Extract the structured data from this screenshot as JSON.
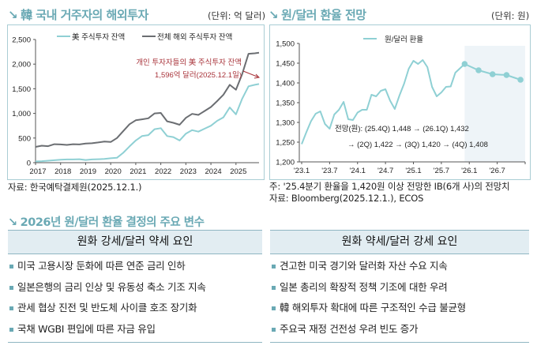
{
  "left_section": {
    "arrow_icon": "↘",
    "title": "韓 국내 거주자의 해외투자",
    "unit": "(단위: 억 달러)",
    "source": "자료: 한국예탁결제원(2025.12.1.)"
  },
  "right_section": {
    "arrow_icon": "↘",
    "title": "원/달러 환율 전망",
    "unit": "(단위: 원)",
    "note": "주: '25.4분기 환율을 1,420원 이상 전망한 IB(6개 사)의 전망치",
    "source": "자료: Bloomberg(2025.12.1.), ECOS"
  },
  "table_section": {
    "arrow_icon": "↘",
    "title": "2026년 원/달러 환율 결정의 주요 변수",
    "columns": [
      {
        "header": "원화 강세/달러 약세 요인",
        "items": [
          "미국 고용시장 둔화에 따른 연준 금리 인하",
          "일본은행의 금리 인상 및 유동성 축소 기조 지속",
          "관세 협상 진전 및 반도체 사이클 호조 장기화",
          "국채 WGBI 편입에 따른 자금 유입"
        ]
      },
      {
        "header": "원화 약세/달러 강세 요인",
        "items": [
          "견고한 미국 경기와 달러화 자산 수요 지속",
          "일본 총리의 확장적 정책 기조에 대한 우려",
          "韓 해외투자 확대에 따른 구조적인 수급 불균형",
          "주요국 재정 건전성 우려 빈도 증가"
        ]
      }
    ]
  },
  "colors": {
    "accent": "#6aa9b4",
    "us_line": "#8fd0d4",
    "total_line": "#6b6e72",
    "annotation": "#a8333a",
    "forecast_shade": "#eef4f8"
  },
  "chart_data": [
    {
      "type": "line",
      "title": "韓 국내 거주자의 해외투자",
      "unit": "억 달러",
      "xlabel": "",
      "ylabel": "",
      "xlim": [
        2017.0,
        2025.92
      ],
      "ylim": [
        0,
        2500
      ],
      "yticks": [
        0,
        500,
        1000,
        1500,
        2000,
        2500
      ],
      "ytick_labels": [
        "0",
        "500",
        "1,000",
        "1,500",
        "2,000",
        "2,500"
      ],
      "xticks": [
        2017,
        2018,
        2019,
        2020,
        2021,
        2022,
        2023,
        2024,
        2025
      ],
      "xtick_labels": [
        "2017",
        "2018",
        "2019",
        "2020",
        "2021",
        "2022",
        "2023",
        "2024",
        "2025"
      ],
      "grid": false,
      "legend": "top",
      "annotation": {
        "line1": "개인 투자자들의 美 주식투자 잔액",
        "line2": "1,596억 달러(2025.12.1일)"
      },
      "x": [
        2017.0,
        2017.25,
        2017.5,
        2017.75,
        2018.0,
        2018.25,
        2018.5,
        2018.75,
        2019.0,
        2019.25,
        2019.5,
        2019.75,
        2020.0,
        2020.25,
        2020.5,
        2020.75,
        2021.0,
        2021.25,
        2021.5,
        2021.75,
        2022.0,
        2022.25,
        2022.5,
        2022.75,
        2023.0,
        2023.25,
        2023.5,
        2023.75,
        2024.0,
        2024.25,
        2024.5,
        2024.75,
        2025.0,
        2025.25,
        2025.5,
        2025.75,
        2025.92
      ],
      "series": [
        {
          "name": "美 주식투자 잔액",
          "values": [
            25,
            30,
            40,
            50,
            60,
            65,
            65,
            70,
            55,
            65,
            70,
            75,
            90,
            100,
            200,
            330,
            450,
            540,
            560,
            680,
            700,
            540,
            520,
            450,
            590,
            660,
            630,
            690,
            750,
            850,
            920,
            1120,
            980,
            1300,
            1550,
            1580,
            1596
          ]
        },
        {
          "name": "전체 해외 주식투자 잔액",
          "values": [
            320,
            345,
            335,
            375,
            370,
            360,
            375,
            370,
            390,
            395,
            410,
            430,
            420,
            500,
            640,
            780,
            860,
            880,
            900,
            1000,
            1010,
            840,
            810,
            770,
            910,
            990,
            970,
            1050,
            1130,
            1250,
            1380,
            1580,
            1480,
            1800,
            2210,
            2220,
            2230
          ]
        }
      ]
    },
    {
      "type": "line",
      "title": "원/달러 환율 전망",
      "unit": "원",
      "xlabel": "",
      "ylabel": "",
      "ylim": [
        1200,
        1500
      ],
      "yticks": [
        1200,
        1250,
        1300,
        1350,
        1400,
        1450,
        1500
      ],
      "ytick_labels": [
        "1,200",
        "1,250",
        "1,300",
        "1,350",
        "1,400",
        "1,450",
        "1,500"
      ],
      "xtick_labels": [
        "'23.1",
        "'23.7",
        "'24.1",
        "'24.7",
        "'25.1",
        "'25.7",
        "'26.1",
        "'26.7"
      ],
      "grid": false,
      "legend": "top",
      "forecast_shaded": true,
      "annotation": {
        "line1": "전망(원): (25.4Q) 1,448 → (26.1Q) 1,432",
        "line2": "→ (2Q) 1,422 → (3Q) 1,420 → (4Q) 1,408"
      },
      "series": [
        {
          "name": "원/달러 환율",
          "x_months": [
            0,
            1,
            2,
            3,
            4,
            5,
            6,
            7,
            8,
            9,
            10,
            11,
            12,
            13,
            14,
            15,
            16,
            17,
            18,
            19,
            20,
            21,
            22,
            23,
            24,
            25,
            26,
            27,
            28,
            29,
            30,
            31,
            32,
            33
          ],
          "values": [
            1245,
            1275,
            1303,
            1322,
            1328,
            1296,
            1284,
            1320,
            1332,
            1352,
            1308,
            1306,
            1325,
            1332,
            1332,
            1370,
            1366,
            1380,
            1384,
            1355,
            1334,
            1368,
            1398,
            1436,
            1456,
            1448,
            1458,
            1440,
            1390,
            1366,
            1376,
            1390,
            1391,
            1426
          ]
        },
        {
          "name": "전망",
          "x_months": [
            35,
            38,
            41,
            44,
            47
          ],
          "labels": [
            "25.4Q",
            "26.1Q",
            "26.2Q",
            "26.3Q",
            "26.4Q"
          ],
          "values": [
            1448,
            1432,
            1422,
            1420,
            1408
          ]
        }
      ]
    }
  ]
}
